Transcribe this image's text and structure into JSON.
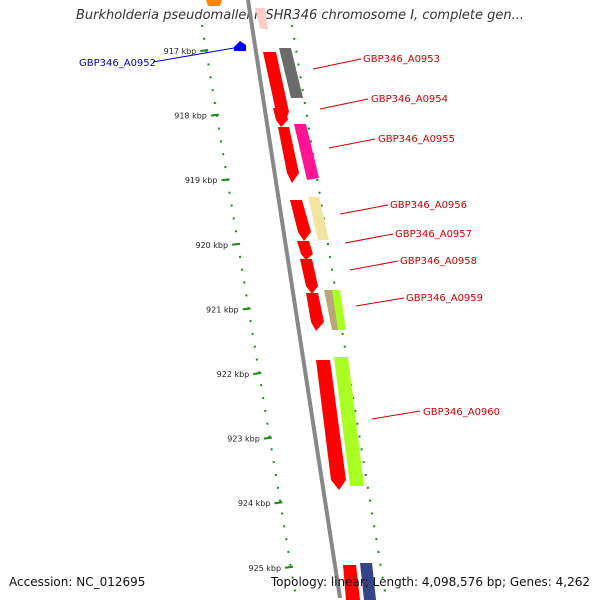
{
  "title": "Burkholderia pseudomallei MSHR346 chromosome I, complete gen...",
  "footer": {
    "accession": "Accession: NC_012695",
    "summary": "Topology: linear; Length: 4,098,576 bp; Genes: 4,262"
  },
  "scale": {
    "ticks": [
      "917 kbp",
      "918 kbp",
      "919 kbp",
      "920 kbp",
      "921 kbp",
      "922 kbp",
      "923 kbp",
      "924 kbp",
      "925 kbp"
    ]
  },
  "gene_labels": [
    {
      "text": "GBP346_A0952",
      "color": "#0000cc"
    },
    {
      "text": "GBP346_A0953",
      "color": "#cc0000"
    },
    {
      "text": "GBP346_A0954",
      "color": "#cc0000"
    },
    {
      "text": "GBP346_A0955",
      "color": "#cc0000"
    },
    {
      "text": "GBP346_A0956",
      "color": "#cc0000"
    },
    {
      "text": "GBP346_A0957",
      "color": "#cc0000"
    },
    {
      "text": "GBP346_A0958",
      "color": "#cc0000"
    },
    {
      "text": "GBP346_A0959",
      "color": "#cc0000"
    },
    {
      "text": "GBP346_A0960",
      "color": "#cc0000"
    }
  ],
  "colors": {
    "genome_line": "#888888",
    "tick": "#1a8a1a",
    "gene_red": "#ff0000",
    "label_red": "#cc0000",
    "label_blue": "#0000cc"
  }
}
